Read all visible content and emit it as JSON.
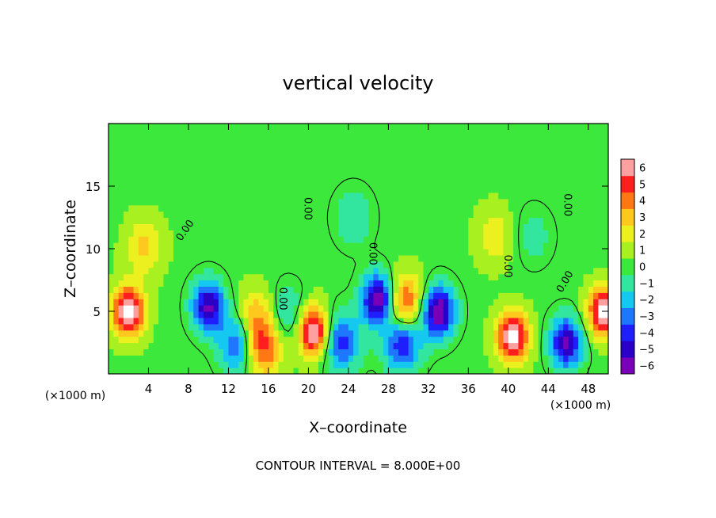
{
  "chart_data": {
    "type": "heatmap",
    "title": "vertical velocity",
    "xlabel": "X–coordinate",
    "ylabel": "Z–coordinate",
    "x_unit_left": "(×1000 m)",
    "x_unit_right": "(×1000 m)",
    "footer": "CONTOUR INTERVAL = 8.000E+00",
    "xlim": [
      0,
      50
    ],
    "ylim": [
      0,
      20
    ],
    "xticks": [
      4,
      8,
      12,
      16,
      20,
      24,
      28,
      32,
      36,
      40,
      44,
      48
    ],
    "yticks": [
      5,
      10,
      15
    ],
    "contour_label": "0.00",
    "colorbar": {
      "levels": [
        -6,
        -5,
        -4,
        -3,
        -2,
        -1,
        0,
        1,
        2,
        3,
        4,
        5,
        6
      ],
      "colors": [
        "#7a00b8",
        "#2a00c8",
        "#1e1eff",
        "#1e78ff",
        "#14c8f0",
        "#32e6a0",
        "#3ce83c",
        "#a8f020",
        "#ecf01e",
        "#ffc81e",
        "#ff7814",
        "#ff1e1e",
        "#ffa0a0"
      ]
    },
    "features": [
      {
        "kind": "updraft",
        "x": 2,
        "z": 5,
        "strength": 7
      },
      {
        "kind": "updraft",
        "x": 3.6,
        "z": 10.2,
        "strength": 2.5
      },
      {
        "kind": "downdraft",
        "x": 10,
        "z": 5.4,
        "strength": -6
      },
      {
        "kind": "downdraft",
        "x": 13,
        "z": 2.4,
        "strength": -4
      },
      {
        "kind": "updraft",
        "x": 14.8,
        "z": 4.6,
        "strength": 3
      },
      {
        "kind": "updraft",
        "x": 15.4,
        "z": 2,
        "strength": 4.5
      },
      {
        "kind": "downdraft",
        "x": 17.8,
        "z": 4.8,
        "strength": -2
      },
      {
        "kind": "updraft",
        "x": 20.6,
        "z": 3.4,
        "strength": 7
      },
      {
        "kind": "downdraft",
        "x": 23.2,
        "z": 2.6,
        "strength": -4.5
      },
      {
        "kind": "downdraft",
        "x": 27,
        "z": 6,
        "strength": -7
      },
      {
        "kind": "updraft",
        "x": 29.6,
        "z": 5.6,
        "strength": 5
      },
      {
        "kind": "downdraft",
        "x": 33,
        "z": 5,
        "strength": -7
      },
      {
        "kind": "downdraft",
        "x": 29.4,
        "z": 2.6,
        "strength": -5
      },
      {
        "kind": "updraft",
        "x": 40.4,
        "z": 3,
        "strength": 7
      },
      {
        "kind": "updraft",
        "x": 38.6,
        "z": 11,
        "strength": 2
      },
      {
        "kind": "downdraft",
        "x": 45.8,
        "z": 2.5,
        "strength": -6
      },
      {
        "kind": "updraft",
        "x": 49.6,
        "z": 5,
        "strength": 7
      },
      {
        "kind": "downdraft",
        "x": 24.5,
        "z": 12.5,
        "strength": -1.6
      },
      {
        "kind": "downdraft",
        "x": 42.5,
        "z": 11,
        "strength": -1.2
      }
    ]
  }
}
